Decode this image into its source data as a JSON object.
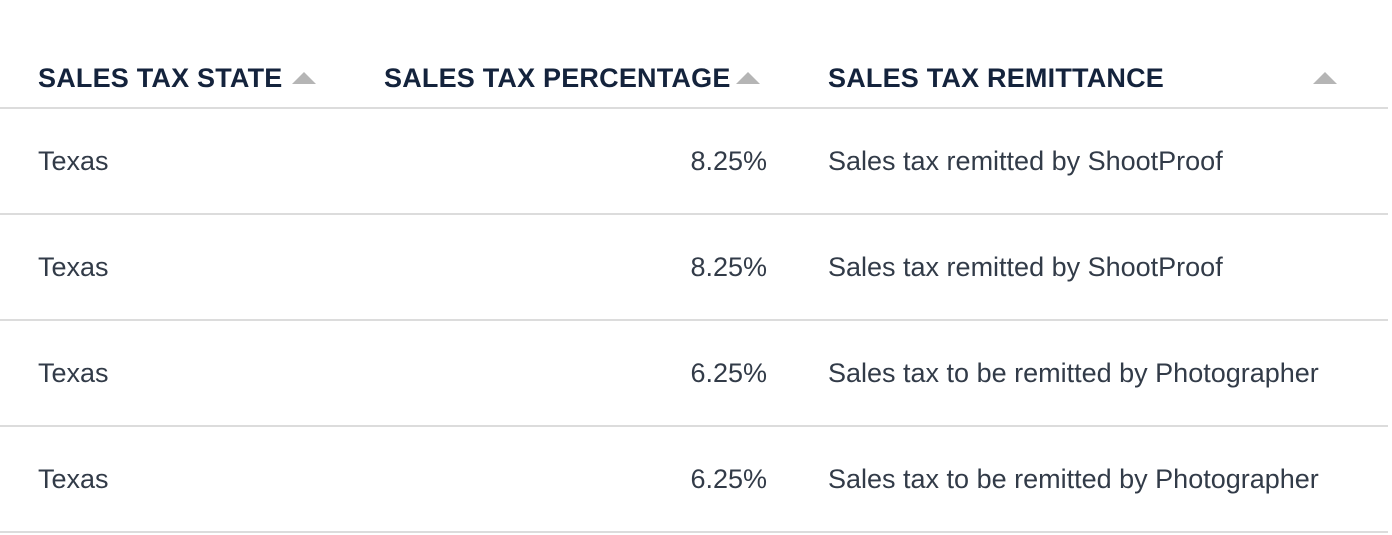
{
  "table": {
    "headers": [
      {
        "label": "SALES TAX STATE"
      },
      {
        "label": "SALES TAX PERCENTAGE"
      },
      {
        "label": "SALES TAX REMITTANCE"
      }
    ],
    "rows": [
      {
        "state": "Texas",
        "percentage": "8.25%",
        "remittance": "Sales tax remitted by ShootProof"
      },
      {
        "state": "Texas",
        "percentage": "8.25%",
        "remittance": "Sales tax remitted by ShootProof"
      },
      {
        "state": "Texas",
        "percentage": "6.25%",
        "remittance": "Sales tax to be remitted by Photographer"
      },
      {
        "state": "Texas",
        "percentage": "6.25%",
        "remittance": "Sales tax to be remitted by Photographer"
      }
    ]
  },
  "icons": {
    "sort": "sort-ascending-icon"
  },
  "colors": {
    "header_text": "#14233c",
    "body_text": "#323b48",
    "divider": "#dcdcdc",
    "sort_icon": "#b5b5b5"
  }
}
